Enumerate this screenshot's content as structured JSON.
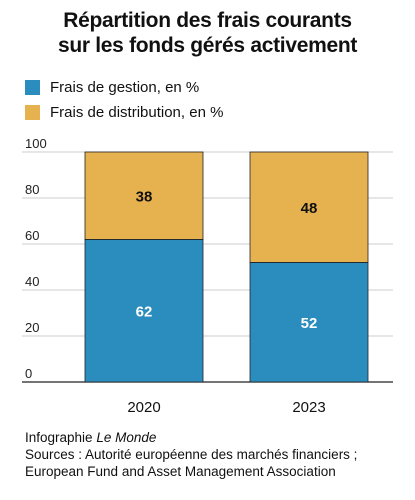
{
  "title_lines": [
    "Répartition des frais courants",
    "sur les fonds gérés activement"
  ],
  "legend": [
    {
      "label": "Frais de gestion",
      "unit": ", en %",
      "color": "#2b8cbe"
    },
    {
      "label": "Frais de distribution",
      "unit": ", en %",
      "color": "#e6b24f"
    }
  ],
  "footer": {
    "credit_prefix": "Infographie ",
    "credit_name": "Le Monde",
    "sources_line1": "Sources : Autorité européenne des marchés financiers ;",
    "sources_line2": "European Fund and Asset Management Association"
  },
  "chart_data": {
    "type": "bar",
    "stacked": true,
    "categories": [
      "2020",
      "2023"
    ],
    "series": [
      {
        "name": "Frais de gestion, en %",
        "values": [
          62,
          52
        ],
        "color": "#2b8cbe",
        "label_color": "#ffffff"
      },
      {
        "name": "Frais de distribution, en %",
        "values": [
          38,
          48
        ],
        "color": "#e6b24f",
        "label_color": "#111111"
      }
    ],
    "ylim": [
      0,
      100
    ],
    "yticks": [
      0,
      20,
      40,
      60,
      80,
      100
    ],
    "grid": true,
    "legend_position": "top-left"
  }
}
